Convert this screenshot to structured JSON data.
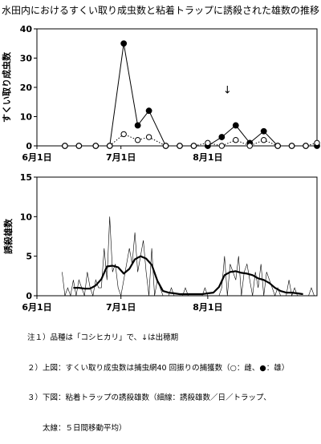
{
  "title": "水田内におけるすくい取り成虫数と粘着トラップに誘殺された雄数の推移",
  "notes": [
    "注１）品種は「コシヒカリ」で、↓は出穂期",
    "２）上図：すくい取り成虫数は捕虫網40 回振りの捕獲数（○：雌、●：雄）",
    "３）下図：粘着トラップの誘殺雄数（細線：誘殺雄数／日／トラップ、",
    "　　太線：５日間移動平均）"
  ],
  "chart_data": [
    {
      "type": "line",
      "ylabel": "すくい取り成虫数",
      "ylim": [
        0,
        40
      ],
      "yticks": [
        0,
        10,
        20,
        30,
        40
      ],
      "x_domain_days": [
        0,
        100
      ],
      "xticks": [
        {
          "day": 0,
          "label": "6月1日"
        },
        {
          "day": 30,
          "label": "7月1日"
        },
        {
          "day": 61,
          "label": "8月1日"
        }
      ],
      "annotation": {
        "text": "↓",
        "day": 68,
        "meaning": "出穂期"
      },
      "series": [
        {
          "marker": "filled-circle",
          "x": [
            10,
            15,
            21,
            26,
            31,
            36,
            40,
            46,
            51,
            56,
            61,
            66,
            71,
            76,
            81,
            86,
            91,
            96,
            100
          ],
          "values": [
            0,
            0,
            0,
            0,
            35,
            7,
            12,
            0,
            0,
            0,
            0,
            3,
            7,
            1,
            5,
            0,
            0,
            0,
            0
          ]
        },
        {
          "marker": "open-circle",
          "style": "dotted",
          "x": [
            10,
            15,
            21,
            26,
            31,
            36,
            40,
            46,
            51,
            56,
            61,
            66,
            71,
            76,
            81,
            86,
            91,
            96,
            100
          ],
          "values": [
            0,
            0,
            0,
            0,
            4,
            2,
            3,
            0,
            0,
            0,
            1,
            0,
            2,
            0,
            2,
            0,
            0,
            0,
            1
          ]
        }
      ]
    },
    {
      "type": "line",
      "ylabel": "誘殺雄数",
      "ylim": [
        0,
        15
      ],
      "yticks": [
        0,
        5,
        10,
        15
      ],
      "x_domain_days": [
        0,
        100
      ],
      "xticks": [
        {
          "day": 0,
          "label": "6月1日"
        },
        {
          "day": 30,
          "label": "7月1日"
        },
        {
          "day": 61,
          "label": "8月1日"
        }
      ],
      "series": [
        {
          "style": "thin",
          "x": [
            9,
            10,
            11,
            12,
            13,
            14,
            15,
            16,
            17,
            18,
            19,
            20,
            21,
            22,
            23,
            24,
            25,
            26,
            27,
            28,
            29,
            30,
            31,
            32,
            33,
            34,
            35,
            36,
            37,
            38,
            39,
            40,
            41,
            42,
            43,
            44,
            45,
            46,
            47,
            48,
            49,
            50,
            51,
            52,
            53,
            54,
            55,
            56,
            57,
            58,
            59,
            60,
            61,
            62,
            63,
            64,
            65,
            66,
            67,
            68,
            69,
            70,
            71,
            72,
            73,
            74,
            75,
            76,
            77,
            78,
            79,
            80,
            81,
            82,
            83,
            84,
            85,
            86,
            87,
            88,
            89,
            90,
            91,
            92,
            93,
            94,
            95,
            96,
            97,
            98,
            99,
            100
          ],
          "values": [
            3,
            0,
            1,
            0,
            2,
            0,
            2,
            1,
            0,
            3,
            1,
            0,
            2,
            1,
            1,
            6,
            2,
            10,
            3,
            4,
            1,
            0,
            2,
            4,
            6,
            4,
            8,
            3,
            5,
            7,
            3,
            0,
            6,
            0,
            2,
            1,
            0,
            0,
            0,
            1,
            0,
            0,
            0,
            0,
            1,
            0,
            0,
            0,
            0,
            0,
            0,
            1,
            0,
            0,
            0,
            0,
            0,
            1,
            5,
            0,
            4,
            3,
            2,
            5,
            0,
            3,
            4,
            2,
            0,
            3,
            1,
            4,
            0,
            3,
            2,
            1,
            0,
            1,
            0,
            0,
            0,
            2,
            0,
            1,
            0,
            0,
            0,
            0,
            0,
            1,
            0,
            0
          ]
        },
        {
          "style": "thick",
          "x": [
            13,
            15,
            17,
            19,
            21,
            23,
            25,
            27,
            29,
            31,
            33,
            35,
            37,
            39,
            41,
            43,
            45,
            47,
            49,
            51,
            53,
            55,
            57,
            59,
            61,
            63,
            65,
            67,
            69,
            71,
            73,
            75,
            77,
            79,
            81,
            83,
            85,
            87,
            89,
            91,
            93,
            95
          ],
          "values": [
            1.0,
            1.0,
            0.9,
            0.9,
            1.3,
            2.1,
            3.7,
            3.8,
            3.6,
            2.8,
            3.4,
            4.6,
            5.0,
            4.7,
            3.9,
            1.9,
            0.6,
            0.4,
            0.3,
            0.2,
            0.2,
            0.2,
            0.2,
            0.2,
            0.3,
            0.4,
            1.1,
            2.6,
            3.0,
            3.1,
            2.9,
            2.8,
            2.6,
            2.2,
            2.0,
            1.6,
            1.0,
            0.6,
            0.4,
            0.4,
            0.3,
            0.2
          ]
        }
      ]
    }
  ]
}
